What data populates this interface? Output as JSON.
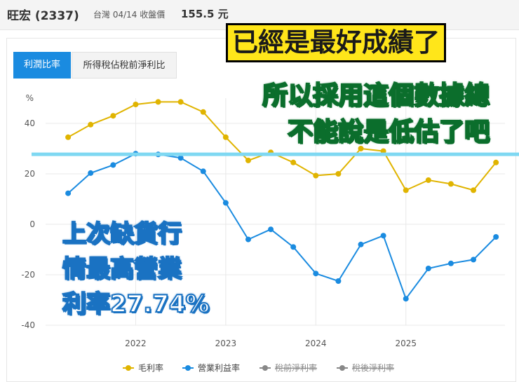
{
  "header": {
    "stock": "旺宏 (2337)",
    "market_date": "台灣 04/14 收盤價",
    "price": "155.5 元"
  },
  "tabs": [
    {
      "label": "利潤比率",
      "active": true
    },
    {
      "label": "所得稅佔稅前淨利比",
      "active": false
    }
  ],
  "overlays": {
    "top": "已經是最好成績了",
    "middle": [
      "所以採用這個數據總",
      "不能說是低估了吧"
    ],
    "left": [
      "上次缺貨行",
      "情最高營業",
      "利率27.74%"
    ]
  },
  "colors": {
    "gross": "#e0b400",
    "operating": "#1a8be0",
    "disabled": "#888888",
    "reference_line": "#7fd8f2",
    "grid": "#e8e8e8"
  },
  "chart_data": {
    "type": "line",
    "ylabel": "%",
    "ylim": [
      -40,
      50
    ],
    "yticks": [
      "40",
      "20",
      "0",
      "-20",
      "-40"
    ],
    "yticks_values": [
      40,
      20,
      0,
      -20,
      -40
    ],
    "xticks": [
      "2022",
      "2023",
      "2024",
      "2025"
    ],
    "xticks_values": [
      2022,
      2023,
      2024,
      2025
    ],
    "x": [
      2021.25,
      2021.5,
      2021.75,
      2022,
      2022.25,
      2022.5,
      2022.75,
      2023,
      2023.25,
      2023.5,
      2023.75,
      2024,
      2024.25,
      2024.5,
      2024.75,
      2025,
      2025.25,
      2025.5,
      2025.75,
      2026
    ],
    "series": [
      {
        "name": "毛利率",
        "color": "#e0b400",
        "values": [
          34.5,
          39.5,
          43,
          47.5,
          48.5,
          48.5,
          44.5,
          34.5,
          25.3,
          28.5,
          24.5,
          19.3,
          20,
          30,
          29,
          13.5,
          17.5,
          16,
          13.5,
          24.5
        ]
      },
      {
        "name": "營業利益率",
        "color": "#1a8be0",
        "values": [
          12.3,
          20.3,
          23.5,
          28,
          27.7,
          26.3,
          21,
          8.5,
          -6,
          -2,
          -9,
          -19.5,
          -22.5,
          -8,
          -4.5,
          -29.5,
          -17.5,
          -15.5,
          -14,
          -5
        ]
      }
    ],
    "legend": [
      {
        "name": "毛利率",
        "enabled": true,
        "color": "#e0b400"
      },
      {
        "name": "營業利益率",
        "enabled": true,
        "color": "#1a8be0"
      },
      {
        "name": "稅前淨利率",
        "enabled": false,
        "color": "#888888"
      },
      {
        "name": "稅後淨利率",
        "enabled": false,
        "color": "#888888"
      }
    ],
    "reference_line": {
      "value": 27.74
    }
  }
}
